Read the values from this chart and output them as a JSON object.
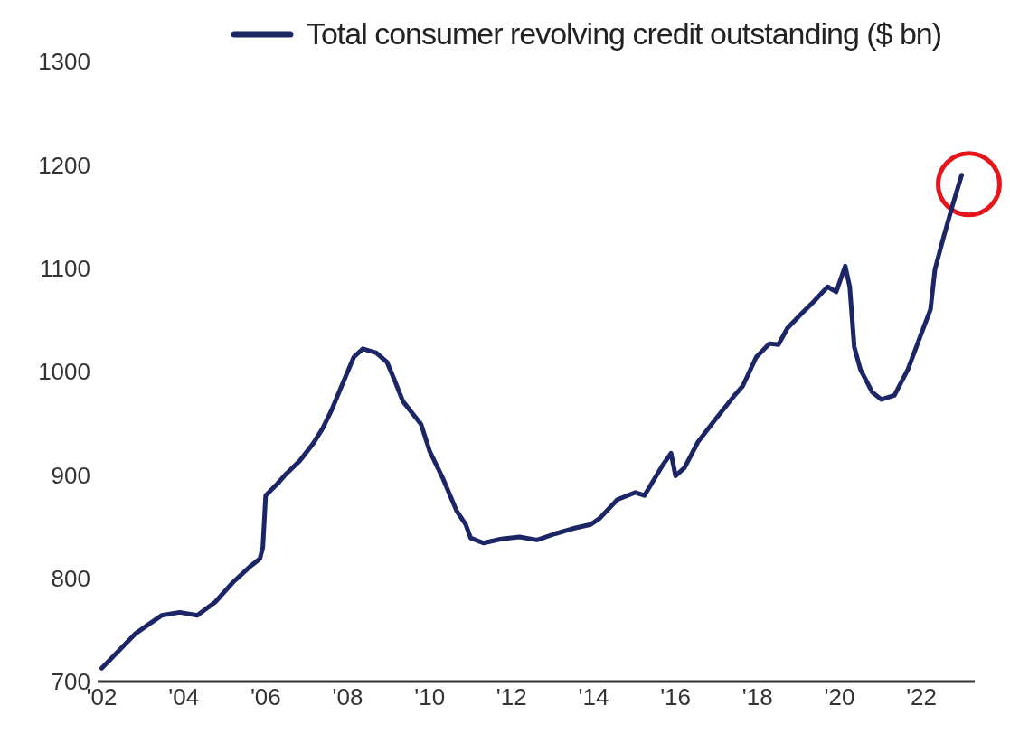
{
  "chart_data": {
    "type": "line",
    "legend": "top",
    "grid": false,
    "marker": "none",
    "line_style": "solid",
    "xlim": [
      2001.9,
      2023.3
    ],
    "xticks": [
      {
        "value": 2002,
        "label": "'02"
      },
      {
        "value": 2004,
        "label": "'04"
      },
      {
        "value": 2006,
        "label": "'06"
      },
      {
        "value": 2008,
        "label": "'08"
      },
      {
        "value": 2010,
        "label": "'10"
      },
      {
        "value": 2012,
        "label": "'12"
      },
      {
        "value": 2014,
        "label": "'14"
      },
      {
        "value": 2016,
        "label": "'16"
      },
      {
        "value": 2018,
        "label": "'18"
      },
      {
        "value": 2020,
        "label": "'20"
      },
      {
        "value": 2022,
        "label": "'22"
      }
    ],
    "ylim": [
      700,
      1300
    ],
    "yticks": [
      700,
      800,
      900,
      1000,
      1100,
      1200,
      1300
    ],
    "x": [
      2002.0,
      2002.37,
      2002.81,
      2003.13,
      2003.46,
      2003.9,
      2004.33,
      2004.77,
      2005.2,
      2005.64,
      2005.86,
      2005.93,
      2006.0,
      2006.3,
      2006.5,
      2006.84,
      2007.17,
      2007.39,
      2007.6,
      2007.82,
      2008.15,
      2008.37,
      2008.7,
      2008.96,
      2009.13,
      2009.35,
      2009.79,
      2010.0,
      2010.33,
      2010.66,
      2010.88,
      2011.0,
      2011.31,
      2011.75,
      2012.19,
      2012.62,
      2013.06,
      2013.49,
      2013.93,
      2014.15,
      2014.58,
      2015.02,
      2015.24,
      2015.68,
      2015.89,
      2016.0,
      2016.22,
      2016.55,
      2016.98,
      2017.42,
      2017.64,
      2017.97,
      2018.29,
      2018.51,
      2018.73,
      2019.05,
      2019.38,
      2019.71,
      2019.92,
      2020.14,
      2020.25,
      2020.36,
      2020.51,
      2020.8,
      2021.02,
      2021.34,
      2021.67,
      2022.0,
      2022.22,
      2022.33,
      2022.54,
      2022.76,
      2022.98
    ],
    "series": [
      {
        "name": "Total consumer revolving credit outstanding ($ bn)",
        "color": "#1c2566",
        "values": [
          713,
          728,
          746,
          755,
          764,
          767,
          764,
          777,
          796,
          812,
          819,
          830,
          880,
          892,
          901,
          914,
          931,
          945,
          962,
          983,
          1014,
          1022,
          1018,
          1009,
          993,
          971,
          949,
          923,
          896,
          865,
          852,
          839,
          834,
          838,
          840,
          837,
          843,
          848,
          852,
          858,
          876,
          883,
          880,
          909,
          921,
          899,
          907,
          932,
          954,
          976,
          986,
          1014,
          1027,
          1026,
          1042,
          1055,
          1068,
          1082,
          1077,
          1102,
          1082,
          1024,
          1002,
          980,
          973,
          977,
          1002,
          1037,
          1060,
          1099,
          1130,
          1161,
          1190
        ]
      }
    ]
  }
}
